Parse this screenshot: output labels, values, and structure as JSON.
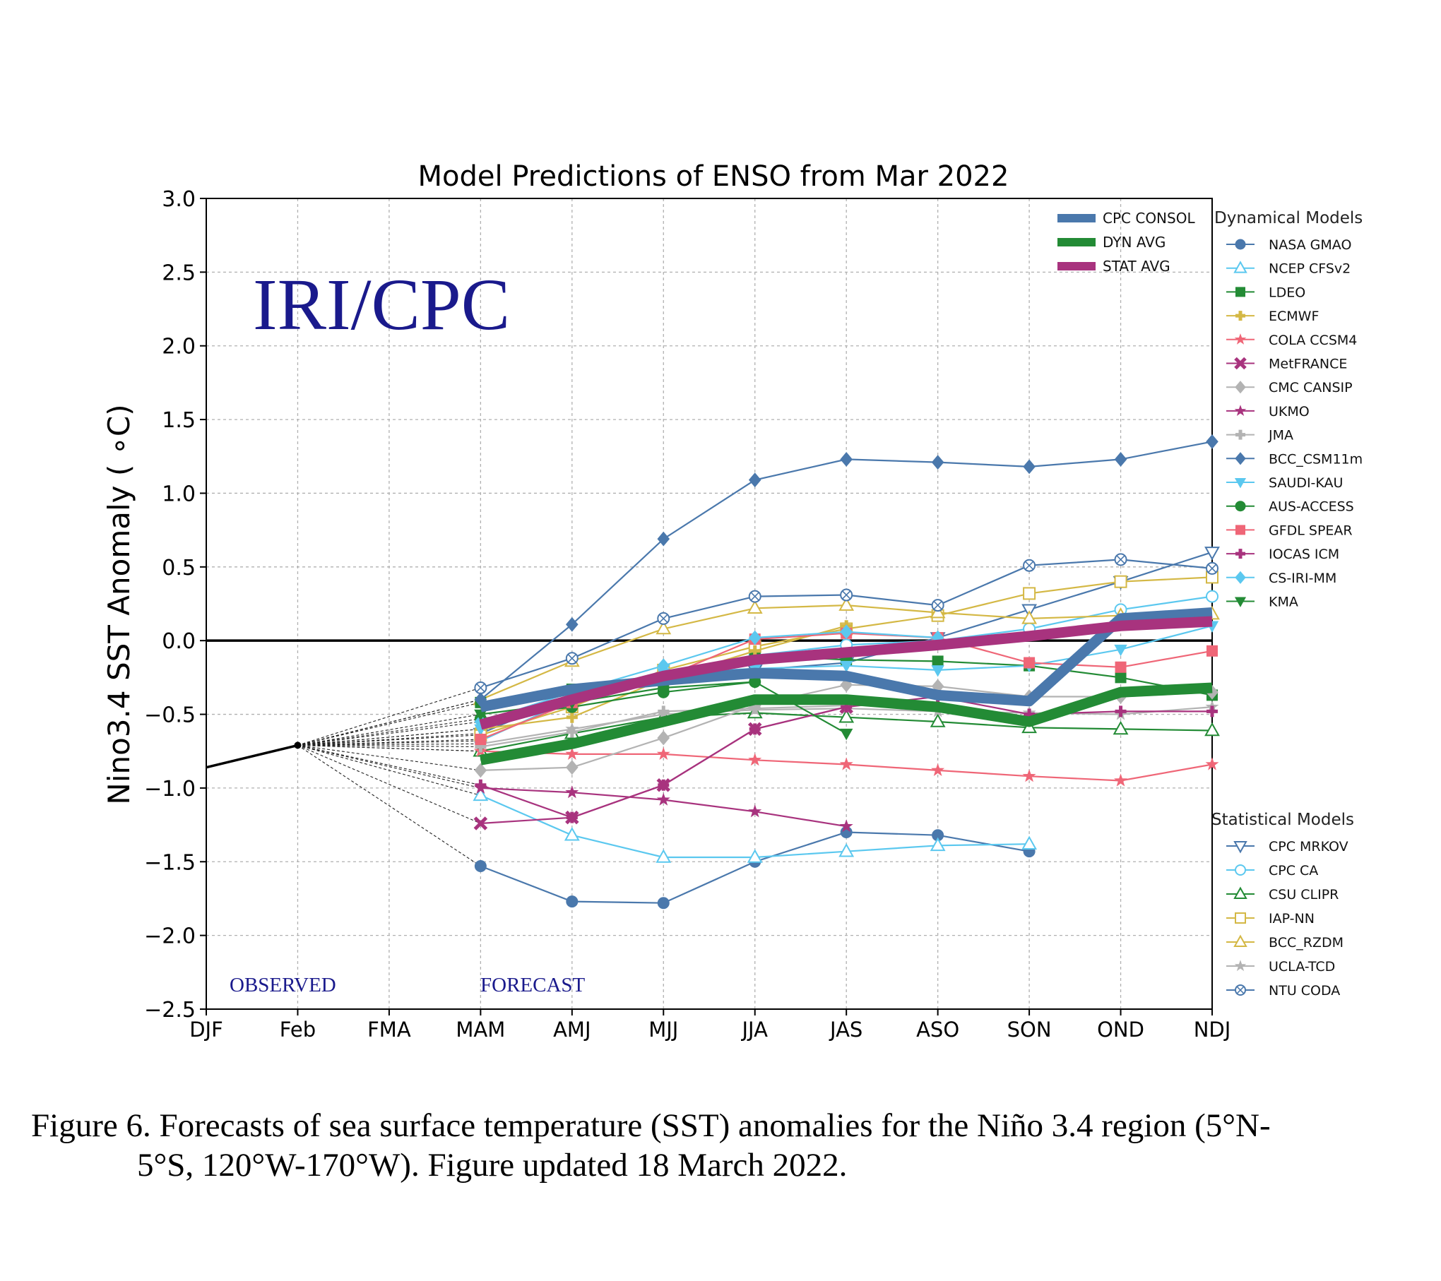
{
  "chart_data": {
    "type": "line",
    "title": "Model Predictions of ENSO from Mar 2022",
    "ylabel": "Nino3.4 SST Anomaly ( ∘C)",
    "xlabel": "",
    "categories": [
      "DJF",
      "Feb",
      "FMA",
      "MAM",
      "AMJ",
      "MJJ",
      "JJA",
      "JAS",
      "ASO",
      "SON",
      "OND",
      "NDJ"
    ],
    "ylim": [
      -2.5,
      3.0
    ],
    "yticks": [
      "3.0",
      "2.5",
      "2.0",
      "1.5",
      "1.0",
      "0.5",
      "0.0",
      "−0.5",
      "−1.0",
      "−1.5",
      "−2.0",
      "−2.5"
    ],
    "ytick_values": [
      3.0,
      2.5,
      2.0,
      1.5,
      1.0,
      0.5,
      0.0,
      -0.5,
      -1.0,
      -1.5,
      -2.0,
      -2.5
    ],
    "grid": true,
    "watermark": "IRI/CPC",
    "label_observed": "OBSERVED",
    "label_forecast": "FORECAST",
    "observed": {
      "x": [
        0,
        1
      ],
      "values": [
        -0.86,
        -0.71
      ]
    },
    "avg_legend_title": "",
    "dyn_legend_title": "Dynamical Models",
    "stat_legend_title": "Statistical Models",
    "averages": [
      {
        "name": "CPC CONSOL",
        "color": "#4a78ac",
        "values": [
          -0.45,
          -0.33,
          -0.27,
          -0.22,
          -0.24,
          -0.37,
          -0.41,
          0.15,
          0.19
        ]
      },
      {
        "name": "DYN AVG",
        "color": "#238b35",
        "values": [
          -0.81,
          -0.7,
          -0.55,
          -0.4,
          -0.4,
          -0.45,
          -0.55,
          -0.35,
          -0.32
        ]
      },
      {
        "name": "STAT AVG",
        "color": "#a8337e",
        "values": [
          -0.57,
          -0.4,
          -0.24,
          -0.13,
          -0.08,
          -0.03,
          0.03,
          0.1,
          0.13
        ]
      }
    ],
    "dynamical": [
      {
        "name": "NASA GMAO",
        "color": "#4a78ac",
        "marker": "circle",
        "values": [
          -1.53,
          -1.77,
          -1.78,
          -1.5,
          -1.3,
          -1.32,
          -1.43
        ]
      },
      {
        "name": "NCEP CFSv2",
        "color": "#5bc8ef",
        "marker": "triangle",
        "values": [
          -1.05,
          -1.32,
          -1.47,
          -1.47,
          -1.43,
          -1.39,
          -1.38
        ]
      },
      {
        "name": "LDEO",
        "color": "#238b35",
        "marker": "square",
        "values": [
          -0.42,
          -0.33,
          -0.3,
          -0.1,
          -0.13,
          -0.14,
          -0.17,
          -0.25,
          -0.37
        ]
      },
      {
        "name": "ECMWF",
        "color": "#d4b845",
        "marker": "plus",
        "values": [
          -0.6,
          -0.52,
          -0.26,
          -0.07,
          0.1
        ]
      },
      {
        "name": "COLA CCSM4",
        "color": "#ef6677",
        "marker": "star",
        "values": [
          -0.75,
          -0.77,
          -0.77,
          -0.81,
          -0.84,
          -0.88,
          -0.92,
          -0.95,
          -0.84
        ]
      },
      {
        "name": "MetFRANCE",
        "color": "#a8337e",
        "marker": "x",
        "values": [
          -1.24,
          -1.2,
          -0.98,
          -0.6,
          -0.45
        ]
      },
      {
        "name": "CMC CANSIP",
        "color": "#b3b3b3",
        "marker": "diamond",
        "values": [
          -0.88,
          -0.86,
          -0.66,
          -0.44,
          -0.3,
          -0.31,
          -0.38,
          -0.38,
          -0.35
        ]
      },
      {
        "name": "UKMO",
        "color": "#a8337e",
        "marker": "star",
        "values": [
          -1.0,
          -1.03,
          -1.08,
          -1.16,
          -1.26
        ]
      },
      {
        "name": "JMA",
        "color": "#b3b3b3",
        "marker": "plus",
        "values": [
          -0.72,
          -0.62,
          -0.48,
          -0.46,
          -0.44
        ]
      },
      {
        "name": "BCC_CSM11m",
        "color": "#4a78ac",
        "marker": "diamond",
        "values": [
          -0.4,
          0.11,
          0.69,
          1.09,
          1.23,
          1.21,
          1.18,
          1.23,
          1.35
        ]
      },
      {
        "name": "SAUDI-KAU",
        "color": "#5bc8ef",
        "marker": "tri_down",
        "values": [
          -0.6,
          -0.38,
          -0.22,
          -0.19,
          -0.17,
          -0.2,
          -0.17,
          -0.06,
          0.1
        ]
      },
      {
        "name": "AUS-ACCESS",
        "color": "#238b35",
        "marker": "circle",
        "values": [
          -0.53,
          -0.45,
          -0.35,
          -0.28
        ]
      },
      {
        "name": "GFDL SPEAR",
        "color": "#ef6677",
        "marker": "square",
        "values": [
          -0.67,
          -0.42,
          -0.25,
          0.01,
          0.05,
          0.02,
          -0.15,
          -0.18,
          -0.07
        ]
      },
      {
        "name": "IOCAS ICM",
        "color": "#a8337e",
        "marker": "plus",
        "values": [
          -0.98,
          -1.2,
          -0.98,
          -0.6,
          -0.45,
          -0.38,
          -0.5,
          -0.48,
          -0.48
        ]
      },
      {
        "name": "CS-IRI-MM",
        "color": "#5bc8ef",
        "marker": "diamond",
        "values": [
          -0.55,
          -0.35,
          -0.17,
          0.02,
          0.06,
          0.02
        ]
      },
      {
        "name": "KMA",
        "color": "#238b35",
        "marker": "tri_down",
        "values": [
          -0.5,
          -0.42,
          -0.32,
          -0.28,
          -0.63
        ]
      }
    ],
    "statistical": [
      {
        "name": "CPC MRKOV",
        "color": "#4a78ac",
        "marker": "tri_down",
        "values": [
          -0.63,
          -0.37,
          -0.25,
          -0.2,
          -0.15,
          0.02,
          0.21,
          0.4,
          0.6
        ]
      },
      {
        "name": "CPC CA",
        "color": "#5bc8ef",
        "marker": "circle",
        "values": [
          -0.68,
          -0.4,
          -0.22,
          -0.1,
          -0.03,
          0.0,
          0.08,
          0.21,
          0.3
        ]
      },
      {
        "name": "CSU CLIPR",
        "color": "#238b35",
        "marker": "triangle",
        "values": [
          -0.75,
          -0.63,
          -0.52,
          -0.49,
          -0.52,
          -0.55,
          -0.59,
          -0.6,
          -0.61
        ]
      },
      {
        "name": "IAP-NN",
        "color": "#d4b845",
        "marker": "square",
        "values": [
          -0.64,
          -0.45,
          -0.2,
          -0.04,
          0.08,
          0.17,
          0.32,
          0.4,
          0.43
        ]
      },
      {
        "name": "BCC_RZDM",
        "color": "#d4b845",
        "marker": "triangle",
        "values": [
          -0.4,
          -0.14,
          0.08,
          0.22,
          0.24,
          0.19,
          0.15,
          0.17,
          0.18
        ]
      },
      {
        "name": "UCLA-TCD",
        "color": "#b3b3b3",
        "marker": "star",
        "values": [
          -0.7,
          -0.6,
          -0.5,
          -0.47,
          -0.46,
          -0.48,
          -0.49,
          -0.5,
          -0.45
        ]
      },
      {
        "name": "NTU CODA",
        "color": "#4a78ac",
        "marker": "xcircle",
        "values": [
          -0.32,
          -0.12,
          0.15,
          0.3,
          0.31,
          0.24,
          0.51,
          0.55,
          0.49
        ]
      }
    ]
  },
  "caption": {
    "line1": "Figure 6. Forecasts of sea surface temperature (SST) anomalies for the Niño 3.4 region (5°N-",
    "line2": "5°S, 120°W-170°W). Figure updated 18 March 2022."
  }
}
